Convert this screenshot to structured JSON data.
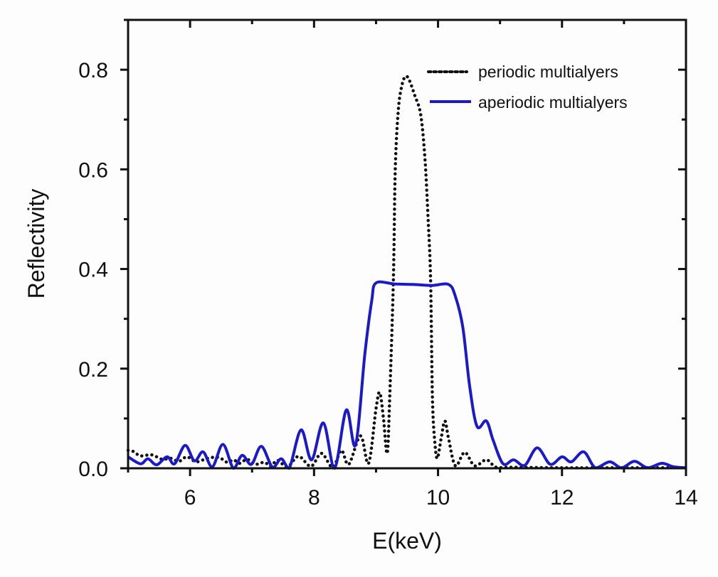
{
  "chart_data": {
    "type": "line",
    "title": "",
    "xlabel": "E(keV)",
    "ylabel": "Reflectivity",
    "xlim": [
      5,
      14
    ],
    "ylim": [
      0,
      0.9
    ],
    "x_ticks": [
      "6",
      "8",
      "10",
      "12",
      "14"
    ],
    "x_tick_values": [
      6,
      8,
      10,
      12,
      14
    ],
    "y_ticks": [
      "0.0",
      "0.2",
      "0.4",
      "0.6",
      "0.8"
    ],
    "y_tick_values": [
      0,
      0.2,
      0.4,
      0.6,
      0.8
    ],
    "grid": false,
    "legend_position": "top-right",
    "series": [
      {
        "name": "periodic multialyers",
        "style": "dotted",
        "color": "#111111",
        "x": [
          5.0,
          5.08,
          5.2,
          5.38,
          5.55,
          5.69,
          5.82,
          5.95,
          6.1,
          6.28,
          6.46,
          6.6,
          6.7,
          6.8,
          6.92,
          7.05,
          7.2,
          7.3,
          7.41,
          7.57,
          7.75,
          7.95,
          8.12,
          8.3,
          8.44,
          8.56,
          8.75,
          8.88,
          9.0,
          9.06,
          9.12,
          9.18,
          9.22,
          9.28,
          9.31,
          9.36,
          9.42,
          9.48,
          9.54,
          9.62,
          9.72,
          9.79,
          9.84,
          9.88,
          9.91,
          9.95,
          9.99,
          10.05,
          10.11,
          10.17,
          10.28,
          10.43,
          10.59,
          10.78,
          10.94,
          11.2,
          12.0,
          13.0,
          14.0
        ],
        "y": [
          0.036,
          0.034,
          0.025,
          0.027,
          0.018,
          0.02,
          0.014,
          0.023,
          0.013,
          0.02,
          0.022,
          0.012,
          0.017,
          0.01,
          0.018,
          0.008,
          0.012,
          0.004,
          0.016,
          0.003,
          0.024,
          0.004,
          0.03,
          0.002,
          0.036,
          0.008,
          0.065,
          0.01,
          0.12,
          0.152,
          0.1,
          0.03,
          0.14,
          0.38,
          0.6,
          0.72,
          0.77,
          0.787,
          0.778,
          0.75,
          0.71,
          0.62,
          0.5,
          0.38,
          0.14,
          0.05,
          0.02,
          0.06,
          0.095,
          0.06,
          0.005,
          0.032,
          0.005,
          0.017,
          0.002,
          0.002,
          0.001,
          0.001,
          0.001
        ]
      },
      {
        "name": "aperiodic multialyers",
        "style": "solid",
        "color": "#1a1acc",
        "x": [
          5.0,
          5.2,
          5.32,
          5.46,
          5.63,
          5.75,
          5.92,
          6.07,
          6.21,
          6.36,
          6.53,
          6.7,
          6.84,
          6.99,
          7.15,
          7.33,
          7.47,
          7.6,
          7.79,
          7.96,
          8.15,
          8.33,
          8.52,
          8.67,
          8.82,
          8.93,
          9.0,
          9.3,
          9.59,
          9.9,
          10.17,
          10.28,
          10.4,
          10.51,
          10.63,
          10.78,
          10.89,
          11.05,
          11.22,
          11.4,
          11.6,
          11.81,
          12.0,
          12.15,
          12.35,
          12.54,
          12.77,
          12.96,
          13.17,
          13.38,
          13.61,
          13.8,
          14.0
        ],
        "y": [
          0.023,
          0.009,
          0.019,
          0.007,
          0.023,
          0.009,
          0.046,
          0.015,
          0.033,
          0.003,
          0.048,
          0.0,
          0.026,
          0.008,
          0.044,
          0.002,
          0.019,
          0.0,
          0.077,
          0.017,
          0.091,
          0.0,
          0.117,
          0.047,
          0.23,
          0.336,
          0.372,
          0.37,
          0.369,
          0.367,
          0.369,
          0.345,
          0.283,
          0.165,
          0.084,
          0.095,
          0.056,
          0.009,
          0.017,
          0.006,
          0.041,
          0.008,
          0.023,
          0.013,
          0.033,
          0.001,
          0.013,
          0.001,
          0.014,
          0.001,
          0.01,
          0.003,
          0.001
        ]
      }
    ]
  }
}
